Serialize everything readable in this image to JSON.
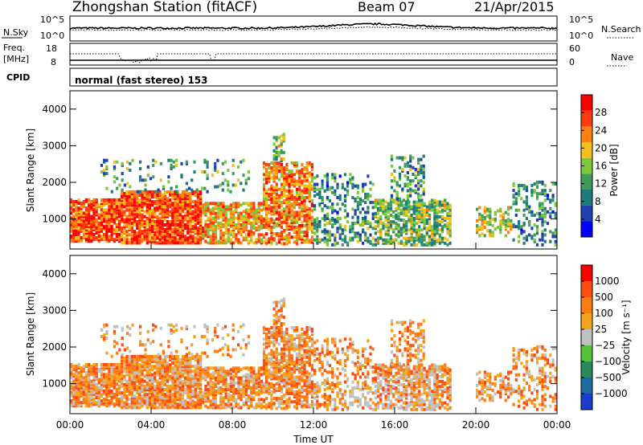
{
  "header": {
    "station": "Zhongshan Station (fitACF)",
    "beam": "Beam 07",
    "date": "21/Apr/2015"
  },
  "noise_panel": {
    "left_label": "N.Sky",
    "right_label": "N.Search",
    "left_ticks": [
      "10^5",
      "10^0"
    ],
    "right_ticks": [
      "10^5",
      "10^0"
    ]
  },
  "freq_panel": {
    "left_label_1": "Freq.",
    "left_label_2": "[MHz]",
    "right_label": "Nave",
    "left_ticks": [
      "18",
      "8"
    ],
    "right_ticks": [
      "60",
      "0"
    ]
  },
  "cpid": {
    "label": "CPID",
    "value": "normal (fast stereo) 153"
  },
  "chart_data": [
    {
      "type": "heatmap",
      "parameter": "Power",
      "ylabel": "Slant Range [km]",
      "xlabel": "Time UT",
      "ylim": [
        180,
        4500
      ],
      "y_ticks": [
        "1000",
        "2000",
        "3000",
        "4000"
      ],
      "x_ticks": [
        "00:00",
        "04:00",
        "08:00",
        "12:00",
        "16:00",
        "20:00",
        "00:00"
      ],
      "colorbar_label": "Power [dB]",
      "colorbar_ticks": [
        "28",
        "24",
        "20",
        "16",
        "12",
        "8",
        "4"
      ],
      "colors": [
        "#0000ff",
        "#1e3fb0",
        "#1f7a7a",
        "#3d9c5a",
        "#7cc83c",
        "#f2c01c",
        "#ff7f0f",
        "#ff3a0f",
        "#ff0000"
      ]
    },
    {
      "type": "heatmap",
      "parameter": "Velocity",
      "ylabel": "Slant Range [km]",
      "xlabel": "Time UT",
      "ylim": [
        180,
        4500
      ],
      "y_ticks": [
        "1000",
        "2000",
        "3000",
        "4000"
      ],
      "x_ticks": [
        "00:00",
        "04:00",
        "08:00",
        "12:00",
        "16:00",
        "20:00",
        "00:00"
      ],
      "colorbar_label": "Velocity [m s⁻¹]",
      "colorbar_ticks": [
        "1000",
        "500",
        "100",
        "25",
        "−25",
        "−100",
        "−500",
        "−1000"
      ],
      "colors": [
        "#1a3cd0",
        "#1e6aa0",
        "#2a8a5a",
        "#55c03a",
        "#c0c0c0",
        "#f7a21c",
        "#ff7a14",
        "#ff4a10",
        "#ff0000"
      ]
    }
  ],
  "axis": {
    "time_label": "Time UT",
    "x_ticks": [
      "00:00",
      "04:00",
      "08:00",
      "12:00",
      "16:00",
      "20:00",
      "00:00"
    ]
  }
}
